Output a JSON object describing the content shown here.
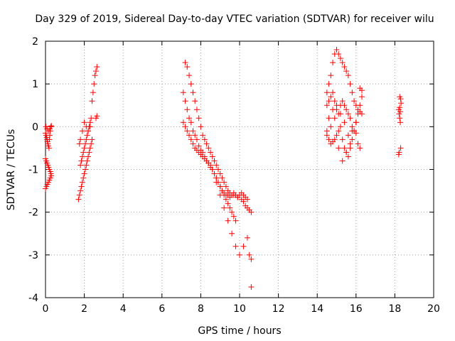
{
  "chart_data": {
    "type": "scatter",
    "title": "Day 329 of 2019, Sidereal Day-to-day VTEC variation (SDTVAR) for receiver wilu",
    "xlabel": "GPS time / hours",
    "ylabel": "SDTVAR / TECUs",
    "xlim": [
      0,
      20
    ],
    "ylim": [
      -4,
      2
    ],
    "xticks": [
      0,
      2,
      4,
      6,
      8,
      10,
      12,
      14,
      16,
      18,
      20
    ],
    "yticks": [
      -4,
      -3,
      -2,
      -1,
      0,
      1,
      2
    ],
    "grid": true,
    "marker": "+",
    "color": "#ff0000",
    "series": [
      {
        "name": "SDTVAR",
        "x": [
          0.0,
          0.03,
          0.06,
          0.08,
          0.1,
          0.12,
          0.15,
          0.18,
          0.2,
          0.22,
          0.25,
          0.28,
          0.3,
          0.0,
          0.04,
          0.08,
          0.12,
          0.16,
          0.2,
          0.25,
          0.28,
          0.0,
          0.05,
          0.1,
          0.15,
          0.2,
          0.25,
          0.3,
          0.02,
          0.08,
          0.15,
          0.22,
          0.28,
          1.7,
          1.75,
          1.8,
          1.85,
          1.9,
          1.95,
          2.0,
          2.05,
          2.1,
          2.15,
          2.2,
          2.25,
          2.3,
          2.35,
          2.4,
          1.8,
          1.85,
          1.9,
          1.95,
          2.0,
          2.05,
          2.1,
          2.15,
          2.2,
          2.25,
          2.3,
          2.35,
          1.75,
          1.8,
          1.9,
          2.0,
          2.1,
          2.2,
          2.3,
          2.4,
          2.45,
          2.5,
          2.55,
          2.6,
          2.65,
          2.6,
          2.65,
          7.1,
          7.2,
          7.3,
          7.4,
          7.5,
          7.6,
          7.7,
          7.8,
          7.9,
          8.0,
          8.1,
          8.2,
          8.3,
          8.4,
          8.5,
          8.6,
          8.7,
          8.8,
          8.9,
          9.0,
          9.1,
          9.2,
          9.3,
          9.4,
          9.5,
          9.6,
          9.7,
          9.8,
          9.9,
          10.0,
          10.1,
          10.2,
          10.3,
          10.4,
          10.5,
          10.6,
          7.2,
          7.3,
          7.4,
          7.5,
          7.6,
          7.7,
          7.8,
          7.9,
          8.0,
          8.1,
          8.2,
          8.3,
          8.4,
          8.5,
          8.6,
          8.7,
          8.8,
          8.9,
          9.0,
          9.1,
          9.2,
          9.3,
          9.4,
          9.5,
          9.6,
          9.7,
          9.8,
          9.9,
          10.0,
          10.1,
          10.2,
          10.3,
          10.4,
          7.1,
          7.2,
          7.3,
          7.4,
          7.5,
          7.6,
          7.7,
          7.8,
          7.9,
          8.0,
          8.1,
          8.2,
          8.3,
          8.4,
          8.5,
          8.6,
          8.7,
          8.8,
          8.9,
          9.0,
          9.1,
          9.2,
          9.3,
          9.4,
          9.5,
          9.6,
          9.7,
          9.8,
          8.8,
          9.0,
          9.2,
          9.4,
          9.6,
          9.8,
          10.0,
          10.2,
          10.4,
          10.5,
          10.6,
          10.6,
          14.5,
          14.6,
          14.7,
          14.8,
          14.9,
          15.0,
          15.1,
          15.2,
          15.3,
          15.4,
          15.5,
          15.6,
          15.7,
          15.8,
          15.9,
          16.0,
          16.1,
          16.2,
          16.3,
          14.5,
          14.6,
          14.7,
          14.8,
          14.9,
          15.0,
          15.1,
          15.2,
          15.3,
          15.4,
          15.5,
          15.6,
          15.7,
          15.8,
          15.9,
          16.0,
          16.1,
          16.2,
          16.3,
          14.5,
          14.6,
          14.7,
          14.8,
          14.9,
          15.0,
          15.1,
          15.2,
          15.3,
          15.4,
          15.5,
          15.6,
          15.7,
          15.8,
          15.9,
          16.0,
          16.1,
          16.2,
          14.6,
          14.8,
          15.0,
          15.2,
          15.4,
          15.6,
          15.8,
          16.0,
          16.2,
          16.3,
          14.5,
          14.7,
          14.9,
          15.1,
          15.3,
          15.5,
          15.7,
          18.2,
          18.22,
          18.25,
          18.28,
          18.3,
          18.32,
          18.25,
          18.28,
          18.22,
          18.3,
          18.2,
          18.25
        ],
        "y": [
          -0.15,
          -0.2,
          -0.25,
          -0.3,
          -0.35,
          -0.4,
          -0.45,
          -0.5,
          -0.3,
          -0.2,
          -0.1,
          0.0,
          0.02,
          -0.75,
          -0.8,
          -0.85,
          -0.9,
          -0.95,
          -1.0,
          -1.05,
          -1.1,
          -1.45,
          -1.4,
          -1.35,
          -1.3,
          -1.25,
          -1.2,
          -1.15,
          0.0,
          -0.05,
          -0.1,
          -0.05,
          0.0,
          -1.7,
          -1.6,
          -1.5,
          -1.4,
          -1.3,
          -1.2,
          -1.1,
          -1.0,
          -0.9,
          -0.8,
          -0.7,
          -0.6,
          -0.5,
          -0.4,
          -0.3,
          -0.9,
          -0.8,
          -0.7,
          -0.6,
          -0.5,
          -0.4,
          -0.3,
          -0.2,
          -0.1,
          0.0,
          0.1,
          0.2,
          -0.4,
          -0.3,
          -0.1,
          0.1,
          0.0,
          -0.1,
          0.0,
          0.6,
          0.8,
          1.0,
          1.2,
          1.3,
          1.4,
          0.2,
          0.25,
          0.8,
          0.6,
          0.4,
          0.2,
          0.1,
          -0.1,
          -0.2,
          -0.3,
          -0.45,
          -0.55,
          -0.6,
          -0.7,
          -0.8,
          -0.85,
          -0.95,
          -1.0,
          -1.1,
          -1.2,
          -1.3,
          -1.4,
          -1.5,
          -1.55,
          -1.6,
          -1.6,
          -1.65,
          -1.6,
          -1.55,
          -1.6,
          -1.65,
          -1.6,
          -1.7,
          -1.75,
          -1.85,
          -1.9,
          -1.95,
          -2.0,
          1.5,
          1.4,
          1.2,
          1.0,
          0.8,
          0.6,
          0.4,
          0.2,
          0.0,
          -0.2,
          -0.3,
          -0.4,
          -0.5,
          -0.6,
          -0.7,
          -0.8,
          -0.9,
          -1.0,
          -1.1,
          -1.2,
          -1.3,
          -1.4,
          -1.5,
          -1.55,
          -1.6,
          -1.6,
          -1.6,
          -1.65,
          -1.6,
          -1.55,
          -1.6,
          -1.65,
          -1.7,
          0.1,
          0.0,
          -0.1,
          -0.2,
          -0.3,
          -0.4,
          -0.5,
          -0.55,
          -0.6,
          -0.65,
          -0.7,
          -0.75,
          -0.8,
          -0.85,
          -0.9,
          -1.0,
          -1.1,
          -1.2,
          -1.3,
          -1.4,
          -1.5,
          -1.6,
          -1.7,
          -1.8,
          -1.9,
          -2.0,
          -2.1,
          -2.2,
          -1.3,
          -1.6,
          -1.9,
          -2.2,
          -2.5,
          -2.8,
          -3.0,
          -2.8,
          -2.6,
          -3.0,
          -3.1,
          -3.75,
          0.8,
          1.0,
          1.2,
          1.5,
          1.7,
          1.8,
          1.7,
          1.6,
          1.5,
          1.4,
          1.3,
          1.2,
          1.0,
          0.8,
          0.6,
          0.5,
          0.4,
          0.35,
          0.3,
          0.5,
          0.6,
          0.7,
          0.8,
          0.6,
          0.4,
          0.3,
          0.5,
          0.6,
          0.5,
          0.4,
          0.3,
          0.2,
          0.0,
          -0.1,
          0.1,
          0.3,
          0.5,
          0.7,
          -0.2,
          -0.3,
          -0.4,
          -0.35,
          -0.3,
          -0.2,
          -0.1,
          0.0,
          -0.3,
          -0.5,
          -0.6,
          -0.7,
          -0.5,
          -0.3,
          -0.1,
          0.1,
          -0.4,
          -0.5,
          0.2,
          0.4,
          0.5,
          0.3,
          0.1,
          -0.2,
          -0.1,
          -0.15,
          0.9,
          0.85,
          -0.1,
          0.0,
          0.2,
          -0.5,
          -0.8,
          -0.6,
          -0.4,
          0.4,
          0.3,
          0.2,
          0.1,
          0.65,
          0.55,
          0.45,
          0.35,
          -0.6,
          -0.5,
          -0.65,
          0.7
        ]
      }
    ]
  }
}
